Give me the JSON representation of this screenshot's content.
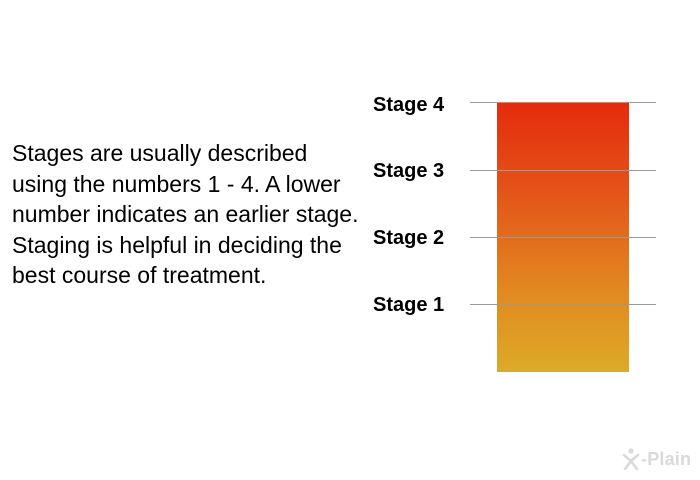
{
  "description": "Stages are usually described using the numbers 1 - 4. A lower number indicates an earlier stage. Staging is helpful in deciding the best course of treatment.",
  "stages": [
    {
      "label": "Stage 4",
      "level": 4
    },
    {
      "label": "Stage 3",
      "level": 3
    },
    {
      "label": "Stage 2",
      "level": 2
    },
    {
      "label": "Stage 1",
      "level": 1
    }
  ],
  "bar": {
    "color_top": "#e52b0c",
    "color_bottom": "#dcaa28"
  },
  "logo": {
    "text": "-Plain",
    "icon": "x-plain-figure-icon"
  }
}
